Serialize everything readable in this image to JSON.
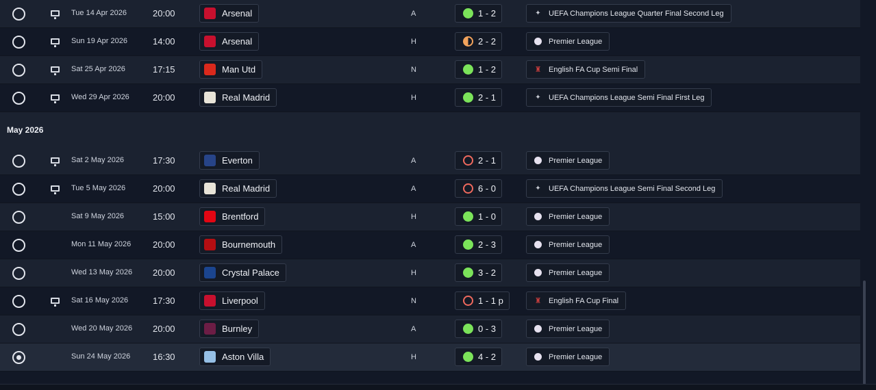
{
  "months": [
    {
      "label": "",
      "fixtures": [
        {
          "date": "Tue 14 Apr 2026",
          "time": "20:00",
          "tv": true,
          "team": "Arsenal",
          "crest": "arsenal",
          "crest_color": "#c8102e",
          "venue": "A",
          "result": "win",
          "score": "1 - 2",
          "competition": "UEFA Champions League Quarter Final Second Leg",
          "comp_icon": "ucl"
        },
        {
          "date": "Sun 19 Apr 2026",
          "time": "14:00",
          "tv": true,
          "team": "Arsenal",
          "crest": "arsenal",
          "crest_color": "#c8102e",
          "venue": "H",
          "result": "draw",
          "score": "2 - 2",
          "competition": "Premier League",
          "comp_icon": "pl"
        },
        {
          "date": "Sat 25 Apr 2026",
          "time": "17:15",
          "tv": true,
          "team": "Man Utd",
          "crest": "man-utd",
          "crest_color": "#da291c",
          "venue": "N",
          "result": "win",
          "score": "1 - 2",
          "competition": "English FA Cup Semi Final",
          "comp_icon": "fa"
        },
        {
          "date": "Wed 29 Apr 2026",
          "time": "20:00",
          "tv": true,
          "team": "Real Madrid",
          "crest": "real-madrid",
          "crest_color": "#e8e4d8",
          "venue": "H",
          "result": "win",
          "score": "2 - 1",
          "competition": "UEFA Champions League Semi Final First Leg",
          "comp_icon": "ucl"
        }
      ]
    },
    {
      "label": "May 2026",
      "fixtures": [
        {
          "date": "Sat 2 May 2026",
          "time": "17:30",
          "tv": true,
          "team": "Everton",
          "crest": "everton",
          "crest_color": "#274488",
          "venue": "A",
          "result": "loss",
          "score": "2 - 1",
          "competition": "Premier League",
          "comp_icon": "pl"
        },
        {
          "date": "Tue 5 May 2026",
          "time": "20:00",
          "tv": true,
          "team": "Real Madrid",
          "crest": "real-madrid",
          "crest_color": "#e8e4d8",
          "venue": "A",
          "result": "loss",
          "score": "6 - 0",
          "competition": "UEFA Champions League Semi Final Second Leg",
          "comp_icon": "ucl"
        },
        {
          "date": "Sat 9 May 2026",
          "time": "15:00",
          "tv": false,
          "team": "Brentford",
          "crest": "brentford",
          "crest_color": "#e30613",
          "venue": "H",
          "result": "win",
          "score": "1 - 0",
          "competition": "Premier League",
          "comp_icon": "pl"
        },
        {
          "date": "Mon 11 May 2026",
          "time": "20:00",
          "tv": false,
          "team": "Bournemouth",
          "crest": "bournemouth",
          "crest_color": "#b50e12",
          "venue": "A",
          "result": "win",
          "score": "2 - 3",
          "competition": "Premier League",
          "comp_icon": "pl"
        },
        {
          "date": "Wed 13 May 2026",
          "time": "20:00",
          "tv": false,
          "team": "Crystal Palace",
          "crest": "crystal-palace",
          "crest_color": "#1b458f",
          "venue": "H",
          "result": "win",
          "score": "3 - 2",
          "competition": "Premier League",
          "comp_icon": "pl"
        },
        {
          "date": "Sat 16 May 2026",
          "time": "17:30",
          "tv": true,
          "team": "Liverpool",
          "crest": "liverpool",
          "crest_color": "#c8102e",
          "venue": "N",
          "result": "loss",
          "score": "1 - 1 p",
          "competition": "English FA Cup Final",
          "comp_icon": "fa"
        },
        {
          "date": "Wed 20 May 2026",
          "time": "20:00",
          "tv": false,
          "team": "Burnley",
          "crest": "burnley",
          "crest_color": "#6c1d45",
          "venue": "A",
          "result": "win",
          "score": "0 - 3",
          "competition": "Premier League",
          "comp_icon": "pl"
        },
        {
          "date": "Sun 24 May 2026",
          "time": "16:30",
          "tv": false,
          "team": "Aston Villa",
          "crest": "aston-villa",
          "crest_color": "#95bfe5",
          "venue": "H",
          "result": "win",
          "score": "4 - 2",
          "competition": "Premier League",
          "comp_icon": "pl",
          "selected": true
        }
      ]
    }
  ]
}
